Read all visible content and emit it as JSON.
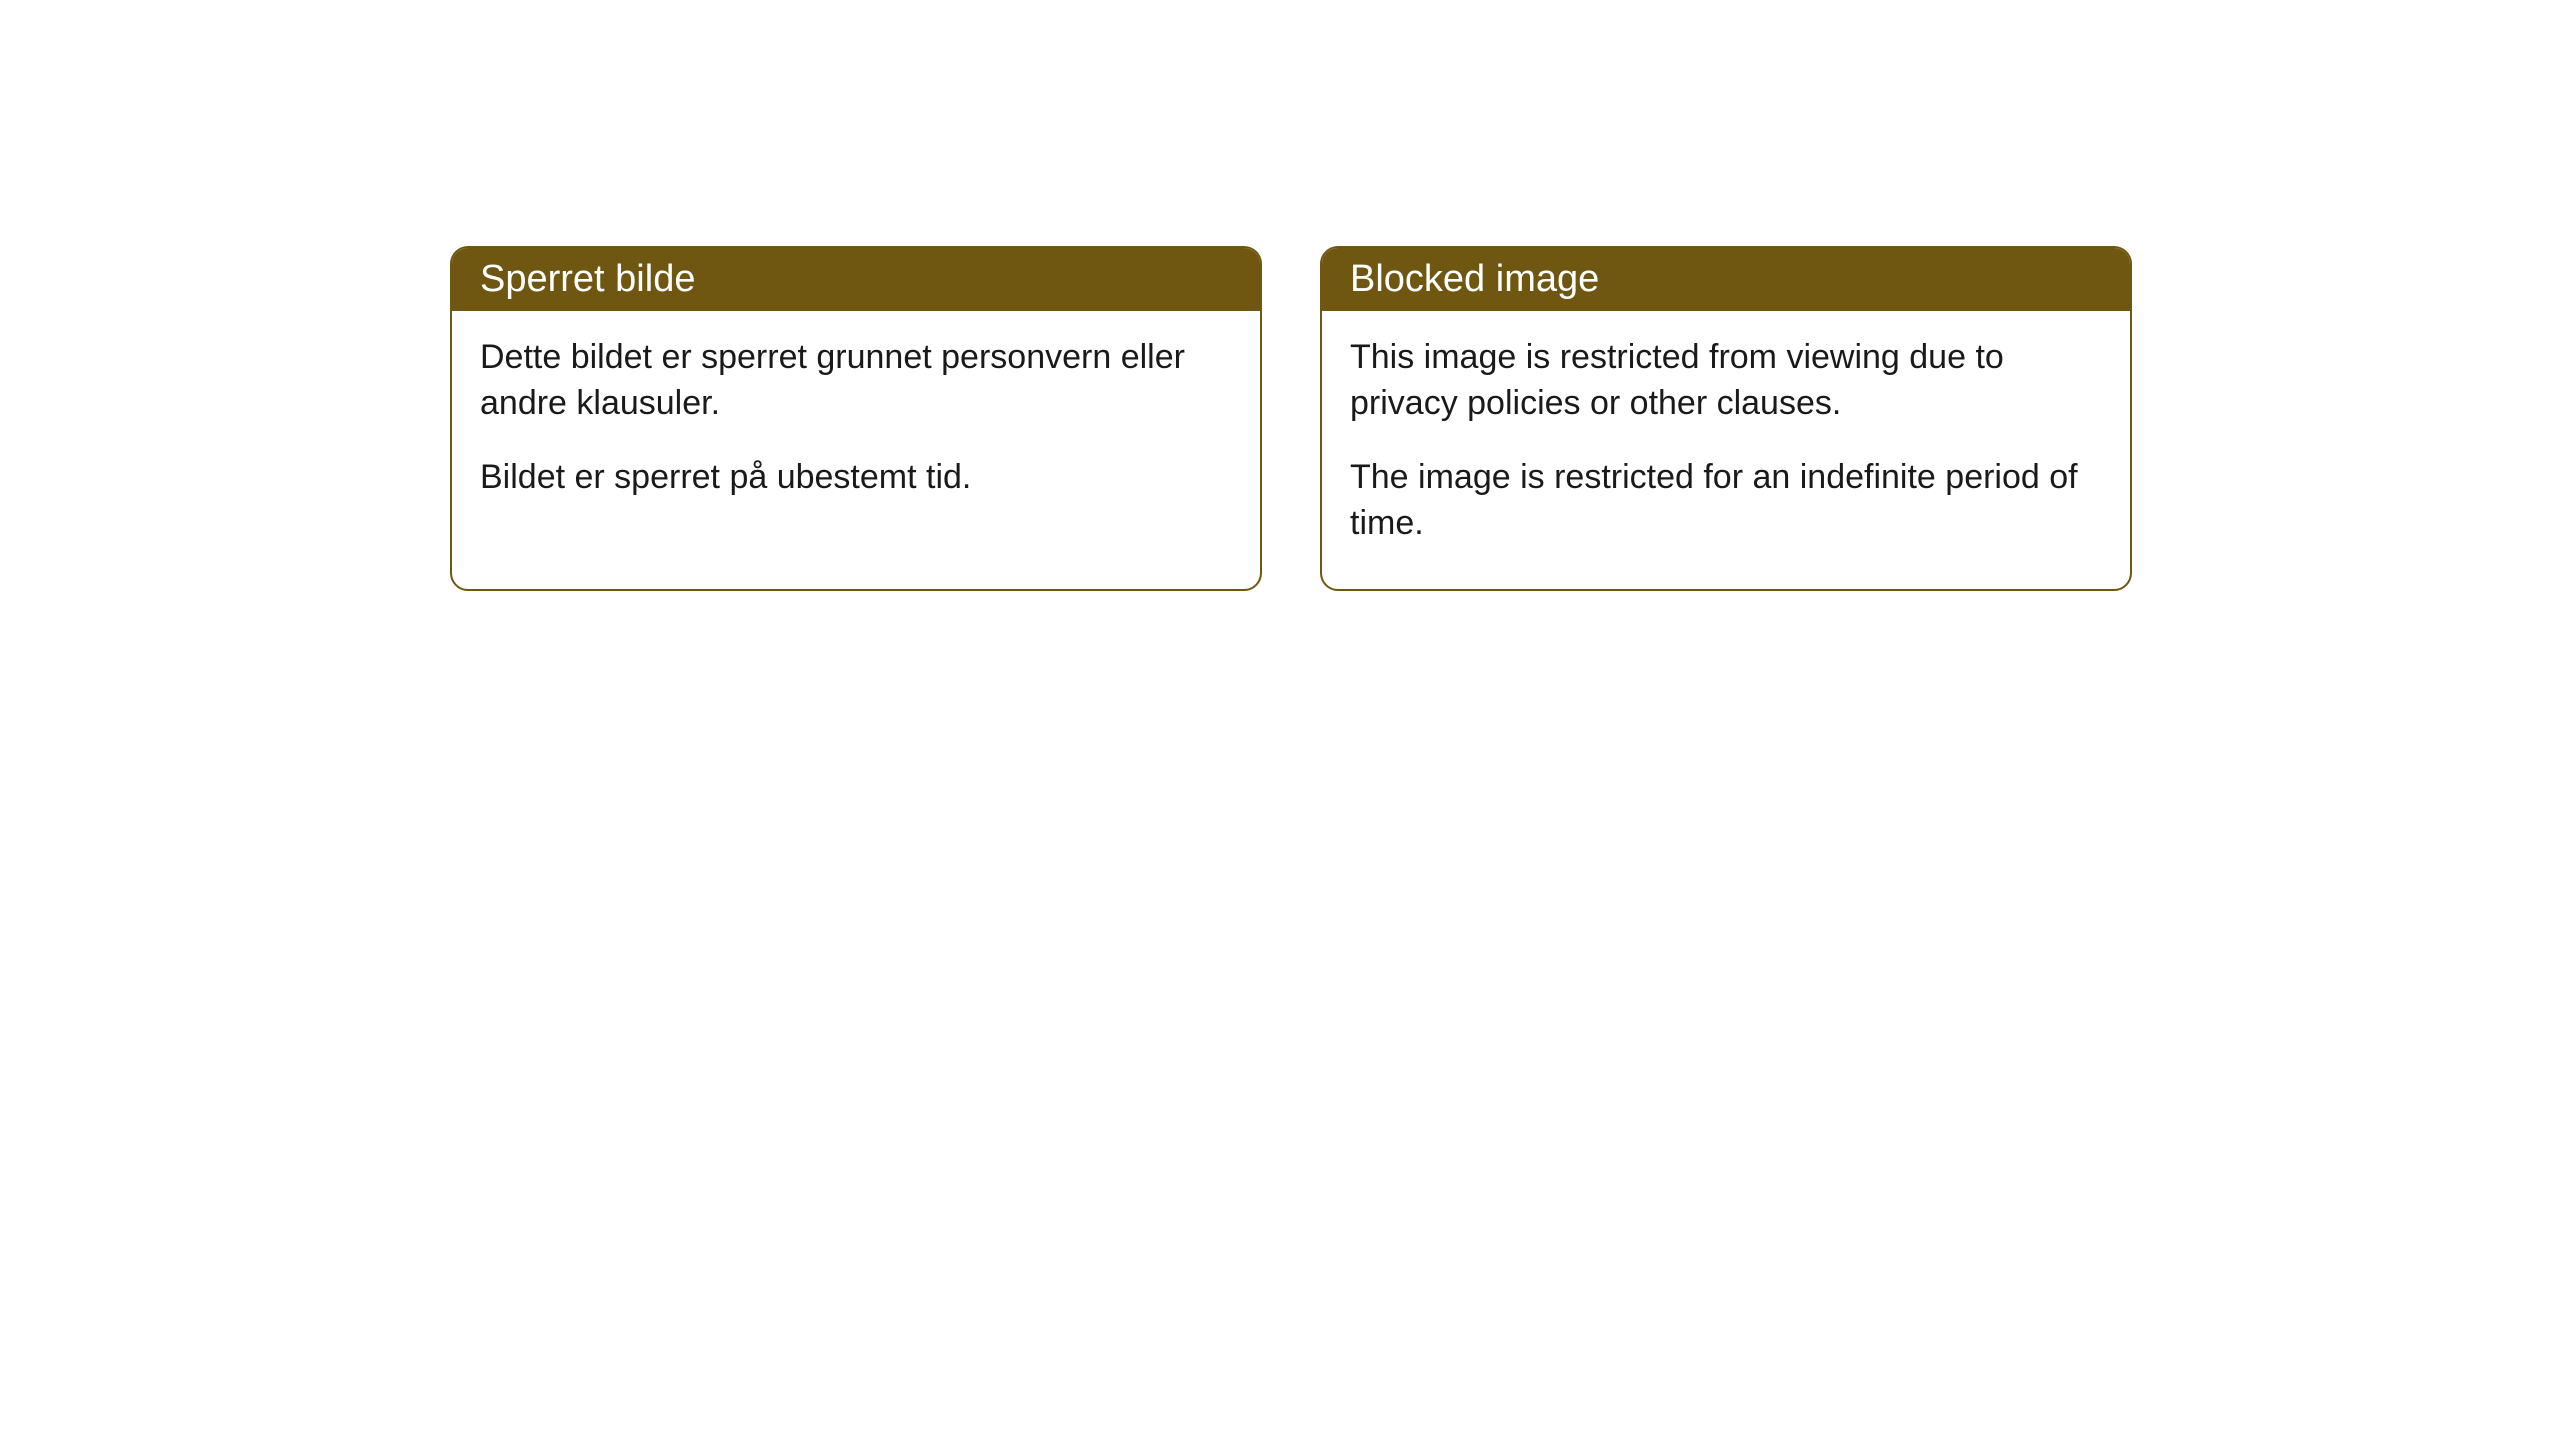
{
  "cards": [
    {
      "title": "Sperret bilde",
      "paragraph1": "Dette bildet er sperret grunnet personvern eller andre klausuler.",
      "paragraph2": "Bildet er sperret på ubestemt tid."
    },
    {
      "title": "Blocked image",
      "paragraph1": "This image is restricted from viewing due to privacy policies or other clauses.",
      "paragraph2": "The image is restricted for an indefinite period of time."
    }
  ],
  "colors": {
    "header_bg": "#705711",
    "header_text": "#ffffff",
    "body_text": "#1a1a1a",
    "border": "#705711",
    "page_bg": "#ffffff"
  }
}
